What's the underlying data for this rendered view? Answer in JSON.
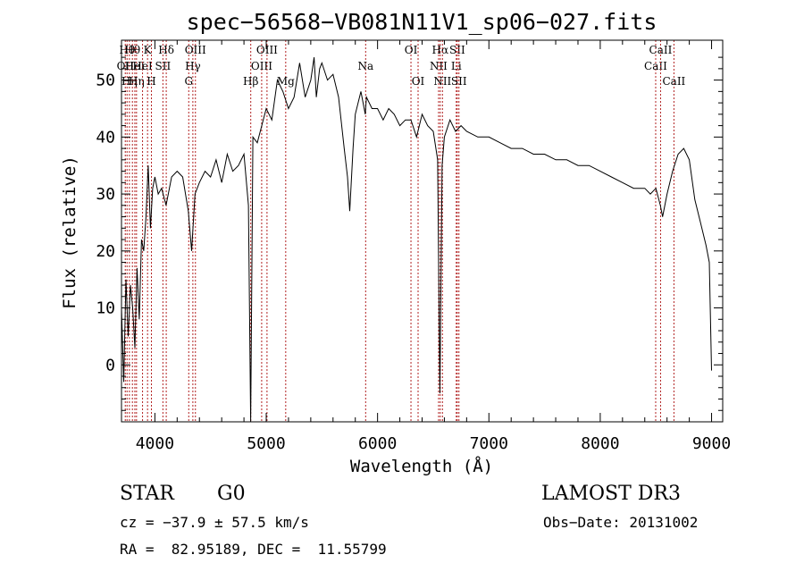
{
  "chart_data": {
    "type": "line",
    "title": "spec−56568−VB081N11V1_sp06−027.fits",
    "xlabel": "Wavelength (Å)",
    "ylabel": "Flux (relative)",
    "xlim": [
      3700,
      9100
    ],
    "ylim": [
      -10,
      57
    ],
    "xticks": [
      4000,
      5000,
      6000,
      7000,
      8000,
      9000
    ],
    "yticks": [
      0,
      10,
      20,
      30,
      40,
      50
    ],
    "series": [
      {
        "name": "flux",
        "x": [
          3700,
          3720,
          3740,
          3760,
          3780,
          3800,
          3820,
          3840,
          3860,
          3880,
          3900,
          3920,
          3940,
          3960,
          3980,
          4000,
          4030,
          4060,
          4100,
          4150,
          4200,
          4250,
          4300,
          4330,
          4360,
          4400,
          4450,
          4500,
          4550,
          4600,
          4650,
          4700,
          4750,
          4800,
          4840,
          4860,
          4880,
          4920,
          4960,
          5000,
          5050,
          5100,
          5150,
          5200,
          5250,
          5300,
          5350,
          5400,
          5430,
          5450,
          5480,
          5500,
          5550,
          5600,
          5650,
          5700,
          5730,
          5750,
          5780,
          5800,
          5850,
          5890,
          5900,
          5950,
          6000,
          6050,
          6100,
          6150,
          6200,
          6250,
          6300,
          6350,
          6400,
          6450,
          6500,
          6540,
          6560,
          6580,
          6600,
          6650,
          6700,
          6750,
          6800,
          6900,
          7000,
          7100,
          7200,
          7300,
          7400,
          7500,
          7600,
          7700,
          7800,
          7900,
          8000,
          8100,
          8200,
          8300,
          8400,
          8450,
          8500,
          8540,
          8560,
          8600,
          8650,
          8700,
          8750,
          8800,
          8850,
          8900,
          8950,
          8980,
          9000
        ],
        "y": [
          10,
          -3,
          15,
          5,
          14,
          10,
          3,
          17,
          8,
          22,
          20,
          26,
          35,
          24,
          31,
          33,
          30,
          31,
          28,
          33,
          34,
          33,
          27,
          20,
          30,
          32,
          34,
          33,
          36,
          32,
          37,
          34,
          35,
          37,
          28,
          -10,
          40,
          39,
          42,
          45,
          43,
          50,
          48,
          45,
          47,
          53,
          47,
          50,
          54,
          47,
          52,
          53,
          50,
          51,
          47,
          38,
          33,
          27,
          38,
          44,
          48,
          44,
          47,
          45,
          45,
          43,
          45,
          44,
          42,
          43,
          43,
          40,
          44,
          42,
          41,
          36,
          -5,
          35,
          40,
          43,
          41,
          42,
          41,
          40,
          40,
          39,
          38,
          38,
          37,
          37,
          36,
          36,
          35,
          35,
          34,
          33,
          32,
          31,
          31,
          30,
          31,
          28,
          26,
          30,
          34,
          37,
          38,
          36,
          29,
          25,
          21,
          18,
          -1
        ]
      }
    ],
    "line_markers": [
      {
        "wave": 3734,
        "label": "OII",
        "row": 2
      },
      {
        "wave": 3750,
        "label": "Hθ",
        "row": 1
      },
      {
        "wave": 3771,
        "label": "Hη",
        "row": 3
      },
      {
        "wave": 3798,
        "label": "Hθ",
        "row": 1
      },
      {
        "wave": 3820,
        "label": "HeI",
        "row": 2
      },
      {
        "wave": 3835,
        "label": "Hη",
        "row": 3
      },
      {
        "wave": 3889,
        "label": "HeI",
        "row": 2
      },
      {
        "wave": 3934,
        "label": "K",
        "row": 1
      },
      {
        "wave": 3969,
        "label": "H",
        "row": 3
      },
      {
        "wave": 4072,
        "label": "SII",
        "row": 2
      },
      {
        "wave": 4102,
        "label": "Hδ",
        "row": 1
      },
      {
        "wave": 4304,
        "label": "G",
        "row": 3
      },
      {
        "wave": 4341,
        "label": "Hγ",
        "row": 2
      },
      {
        "wave": 4364,
        "label": "OIII",
        "row": 1
      },
      {
        "wave": 4861,
        "label": "Hβ",
        "row": 3
      },
      {
        "wave": 4959,
        "label": "OIII",
        "row": 2
      },
      {
        "wave": 5007,
        "label": "OIII",
        "row": 1
      },
      {
        "wave": 5175,
        "label": "Mg",
        "row": 3
      },
      {
        "wave": 5893,
        "label": "Na",
        "row": 2
      },
      {
        "wave": 6300,
        "label": "OI",
        "row": 1
      },
      {
        "wave": 6364,
        "label": "OI",
        "row": 3
      },
      {
        "wave": 6548,
        "label": "NII",
        "row": 2
      },
      {
        "wave": 6563,
        "label": "Hα",
        "row": 1
      },
      {
        "wave": 6583,
        "label": "NII",
        "row": 3
      },
      {
        "wave": 6707,
        "label": "Li",
        "row": 2
      },
      {
        "wave": 6716,
        "label": "SII",
        "row": 1
      },
      {
        "wave": 6731,
        "label": "SII",
        "row": 3
      },
      {
        "wave": 8498,
        "label": "CaII",
        "row": 2
      },
      {
        "wave": 8542,
        "label": "CaII",
        "row": 1
      },
      {
        "wave": 8662,
        "label": "CaII",
        "row": 3
      }
    ]
  },
  "info": {
    "object_class": "STAR",
    "subclass": "G0",
    "survey": "LAMOST DR3",
    "cz": "cz = −37.9 ± 57.5 km/s",
    "obs_date": "Obs−Date: 20131002",
    "coords": "RA =  82.95189, DEC =  11.55799"
  }
}
